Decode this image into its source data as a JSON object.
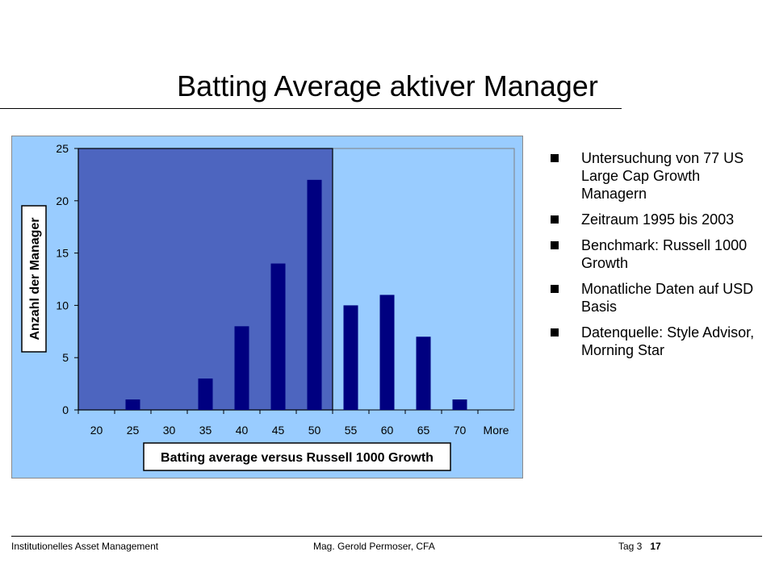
{
  "slide": {
    "title": "Batting Average aktiver Manager"
  },
  "bullets": [
    "Untersuchung von 77 US Large Cap Growth Managern",
    "Zeitraum 1995 bis 2003",
    "Benchmark: Russell 1000 Growth",
    "Monatliche Daten auf USD Basis",
    "Datenquelle: Style Advisor, Morning Star"
  ],
  "footer": {
    "left": "Institutionelles Asset Management",
    "center": "Mag. Gerold Permoser, CFA",
    "day": "Tag 3",
    "page": "17"
  },
  "colors": {
    "panel_background": "#99ccff",
    "plot_background": "#99ccff",
    "highlight_region": "#4d65bf",
    "bars": "#000080"
  },
  "chart_data": {
    "type": "bar",
    "categories": [
      "20",
      "25",
      "30",
      "35",
      "40",
      "45",
      "50",
      "55",
      "60",
      "65",
      "70",
      "More"
    ],
    "values": [
      0,
      1,
      0,
      3,
      8,
      14,
      22,
      10,
      11,
      7,
      1,
      0
    ],
    "xlabel": "Batting average versus Russell 1000 Growth",
    "ylabel": "Anzahl der Manager",
    "ylim": [
      0,
      25
    ],
    "yticks": [
      0,
      5,
      10,
      15,
      20,
      25
    ],
    "highlight_categories": [
      "20",
      "25",
      "30",
      "35",
      "40",
      "45",
      "50"
    ],
    "grid": false,
    "legend": "none"
  }
}
